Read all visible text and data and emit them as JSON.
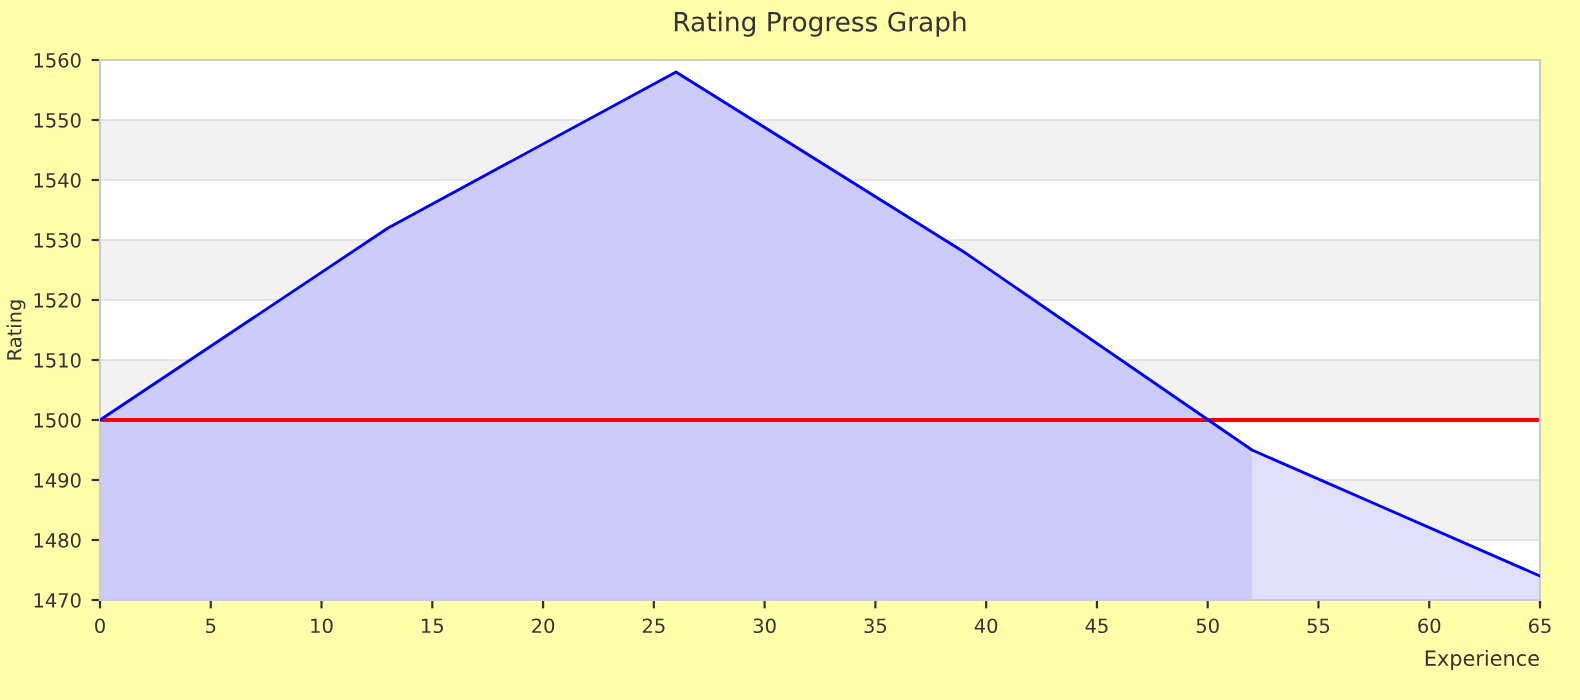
{
  "chart_data": {
    "type": "area",
    "title": "Rating Progress Graph",
    "xlabel": "Experience",
    "ylabel": "Rating",
    "series": [
      {
        "color": "#ccccfa",
        "x": [
          0,
          13,
          26,
          39,
          52
        ],
        "values": [
          1500,
          1532,
          1558,
          1528,
          1495
        ]
      },
      {
        "color": "#e0e0fc",
        "x": [
          52,
          65
        ],
        "values": [
          1495,
          1474
        ]
      },
      {
        "type": "line",
        "color": "#0000ff",
        "x": [
          0,
          13,
          26,
          39,
          52,
          65
        ],
        "values": [
          1500,
          1532,
          1558,
          1528,
          1495,
          1474
        ]
      }
    ],
    "ref_lines": [
      {
        "axis": "y",
        "value": 1500,
        "color": "#ff0000"
      }
    ],
    "xlim": [
      0,
      65
    ],
    "ylim": [
      1470,
      1560
    ],
    "xticks": [
      0,
      5,
      10,
      15,
      20,
      25,
      30,
      35,
      40,
      45,
      50,
      55,
      60,
      65
    ],
    "yticks": [
      1470,
      1480,
      1490,
      1500,
      1510,
      1520,
      1530,
      1540,
      1550,
      1560
    ],
    "grid": "y",
    "marker": "none",
    "line_style": "solid"
  }
}
